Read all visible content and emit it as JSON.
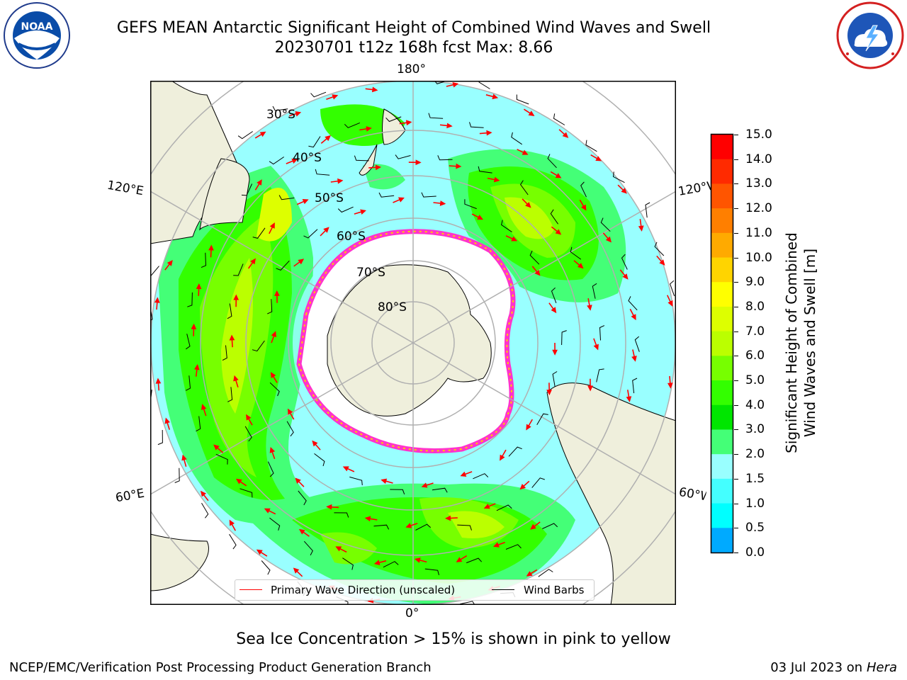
{
  "title": {
    "line1": "GEFS MEAN Antarctic Significant Height of Combined Wind Waves and Swell",
    "line2": "20230701 t12z 168h fcst   Max: 8.66"
  },
  "logos": {
    "left_icon": "noaa-logo",
    "right_icon": "nws-logo"
  },
  "map": {
    "projection": "south-polar-stereographic",
    "longitude_labels": {
      "top": "180°",
      "bottom": "0°",
      "upper_left": "120°E",
      "upper_right": "120°W",
      "lower_left": "60°E",
      "lower_right": "60°W"
    },
    "latitude_labels": [
      "30°S",
      "40°S",
      "50°S",
      "60°S",
      "70°S",
      "80°S"
    ],
    "colors": {
      "land": "#efefdc",
      "ice": "#ffffff",
      "ice_edge": "#ff33cc",
      "ice_edge_yellow": "#ffcc00",
      "grid": "#b0b0b0"
    },
    "wave_height_max": 8.66
  },
  "colorbar": {
    "label": "Significant Height of Combined Wind Waves and Swell [m]",
    "label_line1": "Significant Height of Combined",
    "label_line2": "Wind Waves and Swell [m]",
    "ticks": [
      "15.0",
      "14.0",
      "13.0",
      "12.0",
      "11.0",
      "10.0",
      "9.0",
      "8.0",
      "7.0",
      "6.0",
      "5.0",
      "4.0",
      "3.0",
      "2.0",
      "1.5",
      "1.0",
      "0.5",
      "0.0"
    ],
    "colors": [
      "#ff0000",
      "#ff2a00",
      "#ff5500",
      "#ff7f00",
      "#ffaa00",
      "#ffd400",
      "#ffff00",
      "#ddff00",
      "#bbff00",
      "#77ff00",
      "#33ff00",
      "#00e600",
      "#44ff77",
      "#99ffff",
      "#44ffff",
      "#00ffff",
      "#00aaff",
      "#0066ff",
      "#0000ff"
    ]
  },
  "legend": {
    "primary_wave": "Primary Wave Direction (unscaled)",
    "wind_barbs": "Wind Barbs",
    "primary_wave_color": "#ff0000",
    "wind_barbs_color": "#000000"
  },
  "footnote": "Sea Ice Concentration > 15% is shown in pink to yellow",
  "credit_left": "NCEP/EMC/Verification Post Processing Product Generation Branch",
  "credit_right_prefix": "03 Jul 2023 on ",
  "credit_right_host": "Hera"
}
